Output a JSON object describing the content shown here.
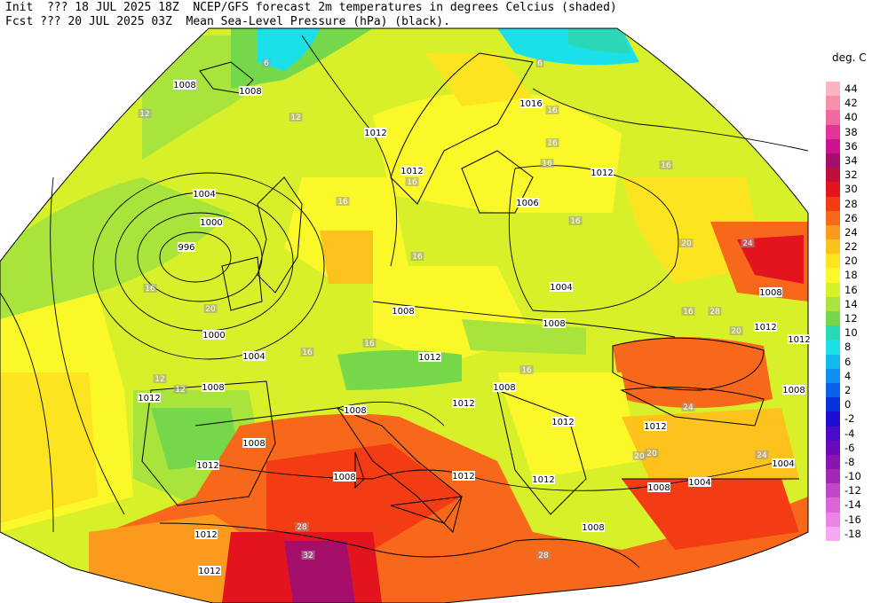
{
  "header": {
    "line1": "Init  ??? 18 JUL 2025 18Z  NCEP/GFS forecast 2m temperatures in degrees Celcius (shaded)",
    "line2": "Fcst ??? 20 JUL 2025 03Z  Mean Sea-Level Pressure (hPa) (black)."
  },
  "legend": {
    "title": "deg. C",
    "items": [
      {
        "label": "44",
        "color": "#f9b6c0"
      },
      {
        "label": "42",
        "color": "#f690ad"
      },
      {
        "label": "40",
        "color": "#f06aa0"
      },
      {
        "label": "38",
        "color": "#e6339a"
      },
      {
        "label": "36",
        "color": "#cc1490"
      },
      {
        "label": "34",
        "color": "#a60e6c"
      },
      {
        "label": "32",
        "color": "#bd0f3a"
      },
      {
        "label": "30",
        "color": "#e4141e"
      },
      {
        "label": "28",
        "color": "#f43c14"
      },
      {
        "label": "26",
        "color": "#f8681a"
      },
      {
        "label": "24",
        "color": "#fb9a1c"
      },
      {
        "label": "22",
        "color": "#fdc21c"
      },
      {
        "label": "20",
        "color": "#fde420"
      },
      {
        "label": "18",
        "color": "#faf828"
      },
      {
        "label": "16",
        "color": "#d8f02a"
      },
      {
        "label": "14",
        "color": "#a8e43c"
      },
      {
        "label": "12",
        "color": "#74d84a"
      },
      {
        "label": "10",
        "color": "#2ad8b8"
      },
      {
        "label": "8",
        "color": "#1ce0e8"
      },
      {
        "label": "6",
        "color": "#14b8f0"
      },
      {
        "label": "4",
        "color": "#0e90f0"
      },
      {
        "label": "2",
        "color": "#0a60e8"
      },
      {
        "label": "0",
        "color": "#0a32dc"
      },
      {
        "label": "-2",
        "color": "#1e0ed0"
      },
      {
        "label": "-4",
        "color": "#4a0ac8"
      },
      {
        "label": "-6",
        "color": "#6a0ab8"
      },
      {
        "label": "-8",
        "color": "#8a14b0"
      },
      {
        "label": "-10",
        "color": "#a428b8"
      },
      {
        "label": "-12",
        "color": "#c446c8"
      },
      {
        "label": "-14",
        "color": "#dc64d8"
      },
      {
        "label": "-16",
        "color": "#ec84e6"
      },
      {
        "label": "-18",
        "color": "#f8a8f2"
      }
    ]
  },
  "isobar_labels": [
    "1008",
    "1008",
    "1016",
    "1012",
    "1012",
    "1012",
    "1004",
    "1000",
    "996",
    "1006",
    "1008",
    "1004",
    "1000",
    "1004",
    "1008",
    "1012",
    "1012",
    "1008",
    "1012",
    "1008",
    "1012",
    "1008",
    "1012",
    "1008",
    "1012",
    "1012",
    "1012",
    "1012",
    "1004",
    "1004",
    "1008",
    "1008",
    "1008",
    "1012",
    "1008",
    "1008",
    "1012",
    "1012",
    "101",
    "1008"
  ],
  "temp_labels": [
    "6",
    "6",
    "12",
    "12",
    "16",
    "16",
    "16",
    "16",
    "16",
    "16",
    "16",
    "16",
    "16",
    "20",
    "16",
    "16",
    "12",
    "12",
    "16",
    "20",
    "24",
    "28",
    "20",
    "16",
    "20",
    "24",
    "20",
    "24",
    "28",
    "32",
    "28"
  ]
}
